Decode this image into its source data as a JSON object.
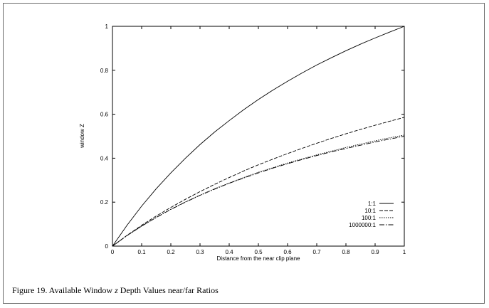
{
  "caption": {
    "prefix": "Figure 19. Available Window",
    "variable": "z",
    "suffix": "Depth Values near/far Ratios"
  },
  "chart_data": {
    "type": "line",
    "title": "",
    "xlabel": "Distance from the near clip plane",
    "ylabel": "window Z",
    "xlim": [
      0,
      1
    ],
    "ylim": [
      0,
      1
    ],
    "xticks": [
      0,
      0.1,
      0.2,
      0.3,
      0.4,
      0.5,
      0.6,
      0.7,
      0.8,
      0.9,
      1
    ],
    "xtick_labels": [
      "0",
      "0.1",
      "0.2",
      "0.3",
      "0.4",
      "0.5",
      "0.6",
      "0.7",
      "0.8",
      "0.9",
      "1"
    ],
    "yticks": [
      0,
      0.2,
      0.4,
      0.6,
      0.8,
      1
    ],
    "ytick_labels": [
      "0",
      "0.2",
      "0.4",
      "0.6",
      "0.8",
      "1"
    ],
    "grid": false,
    "legend_position": "bottom-right",
    "x": [
      0,
      0.05,
      0.1,
      0.15,
      0.2,
      0.25,
      0.3,
      0.35,
      0.4,
      0.45,
      0.5,
      0.55,
      0.6,
      0.65,
      0.7,
      0.75,
      0.8,
      0.85,
      0.9,
      0.95,
      1
    ],
    "series": [
      {
        "name": "1:1",
        "dash": "",
        "values": [
          0,
          0.095,
          0.182,
          0.261,
          0.333,
          0.4,
          0.462,
          0.519,
          0.571,
          0.621,
          0.667,
          0.71,
          0.75,
          0.788,
          0.824,
          0.857,
          0.889,
          0.919,
          0.947,
          0.974,
          1.0
        ]
      },
      {
        "name": "10:1",
        "dash": "5,2",
        "values": [
          0,
          0.049,
          0.095,
          0.137,
          0.176,
          0.213,
          0.248,
          0.281,
          0.312,
          0.342,
          0.37,
          0.396,
          0.421,
          0.445,
          0.468,
          0.49,
          0.511,
          0.531,
          0.55,
          0.568,
          0.586
        ]
      },
      {
        "name": "100:1",
        "dash": "1.5,1.5",
        "values": [
          0,
          0.048,
          0.091,
          0.131,
          0.168,
          0.201,
          0.232,
          0.261,
          0.287,
          0.312,
          0.336,
          0.357,
          0.378,
          0.397,
          0.415,
          0.432,
          0.449,
          0.464,
          0.479,
          0.493,
          0.505
        ]
      },
      {
        "name": "1000000:1",
        "dash": "7,2,1.5,2",
        "values": [
          0,
          0.048,
          0.091,
          0.13,
          0.167,
          0.2,
          0.231,
          0.259,
          0.286,
          0.31,
          0.333,
          0.355,
          0.375,
          0.394,
          0.412,
          0.429,
          0.444,
          0.459,
          0.474,
          0.487,
          0.5
        ]
      }
    ]
  }
}
